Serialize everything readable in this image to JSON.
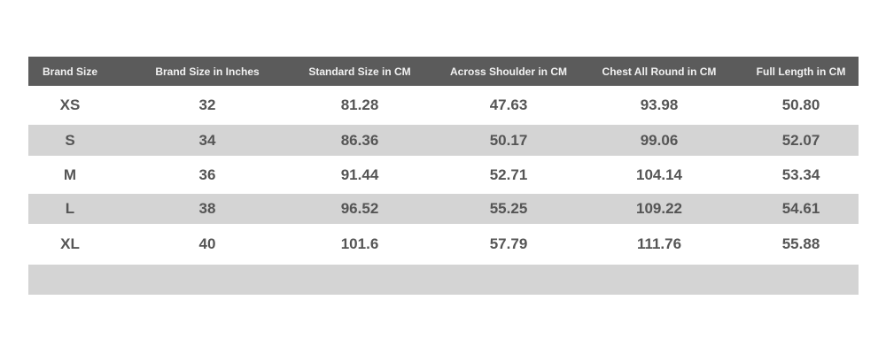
{
  "headers": [
    "Brand Size",
    "Brand Size in Inches",
    "Standard Size in CM",
    "Across Shoulder in CM",
    "Chest All Round in CM",
    "Full Length in CM"
  ],
  "rows": [
    [
      "XS",
      "32",
      "81.28",
      "47.63",
      "93.98",
      "50.80"
    ],
    [
      "S",
      "34",
      "86.36",
      "50.17",
      "99.06",
      "52.07"
    ],
    [
      "M",
      "36",
      "91.44",
      "52.71",
      "104.14",
      "53.34"
    ],
    [
      "L",
      "38",
      "96.52",
      "55.25",
      "109.22",
      "54.61"
    ],
    [
      "XL",
      "40",
      "101.6",
      "57.79",
      "111.76",
      "55.88"
    ]
  ],
  "colors": {
    "header_bg": "#5b5b5b",
    "stripe": "#d4d4d4",
    "text": "#555555"
  }
}
